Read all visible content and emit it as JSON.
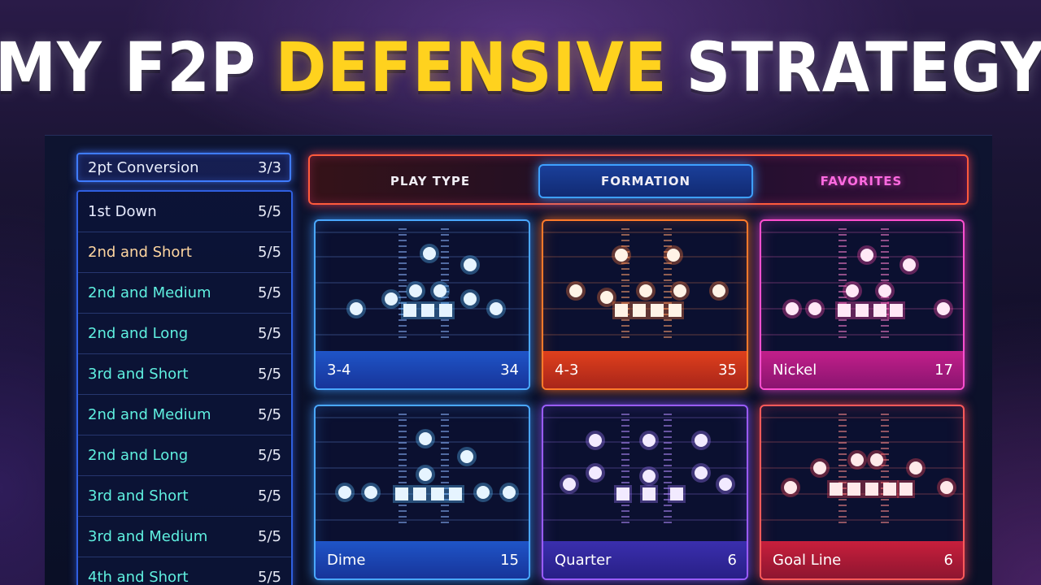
{
  "headline": {
    "part1": "MY F2P",
    "part2": "DEFENSIVE",
    "part3": "STRATEGY"
  },
  "colors": {
    "accent": "#ffd21e",
    "headline": "#ffffff"
  },
  "sidebar": {
    "selected": {
      "label": "2pt Conversion",
      "count": "3/3"
    },
    "items": [
      {
        "label": "1st Down",
        "count": "5/5",
        "color": "#e8ecff"
      },
      {
        "label": "2nd and Short",
        "count": "5/5",
        "color": "#ffd6a0"
      },
      {
        "label": "2nd and Medium",
        "count": "5/5",
        "color": "#5ff0e0"
      },
      {
        "label": "2nd and Long",
        "count": "5/5",
        "color": "#5ff0e0"
      },
      {
        "label": "3rd and Short",
        "count": "5/5",
        "color": "#5ff0e0"
      },
      {
        "label": "2nd and Medium",
        "count": "5/5",
        "color": "#5ff0e0"
      },
      {
        "label": "2nd and Long",
        "count": "5/5",
        "color": "#5ff0e0"
      },
      {
        "label": "3rd and Short",
        "count": "5/5",
        "color": "#5ff0e0"
      },
      {
        "label": "3rd and Medium",
        "count": "5/5",
        "color": "#5ff0e0"
      },
      {
        "label": "4th and Short",
        "count": "5/5",
        "color": "#5ff0e0"
      }
    ]
  },
  "tabs": [
    {
      "label": "PLAY TYPE"
    },
    {
      "label": "FORMATION"
    },
    {
      "label": "FAVORITES"
    }
  ],
  "formations": [
    {
      "name": "3-4",
      "count": "34",
      "theme": "blue"
    },
    {
      "name": "4-3",
      "count": "35",
      "theme": "orange"
    },
    {
      "name": "Nickel",
      "count": "17",
      "theme": "pink"
    },
    {
      "name": "Dime",
      "count": "15",
      "theme": "blue"
    },
    {
      "name": "Quarter",
      "count": "6",
      "theme": "purple"
    },
    {
      "name": "Goal Line",
      "count": "6",
      "theme": "red"
    }
  ]
}
